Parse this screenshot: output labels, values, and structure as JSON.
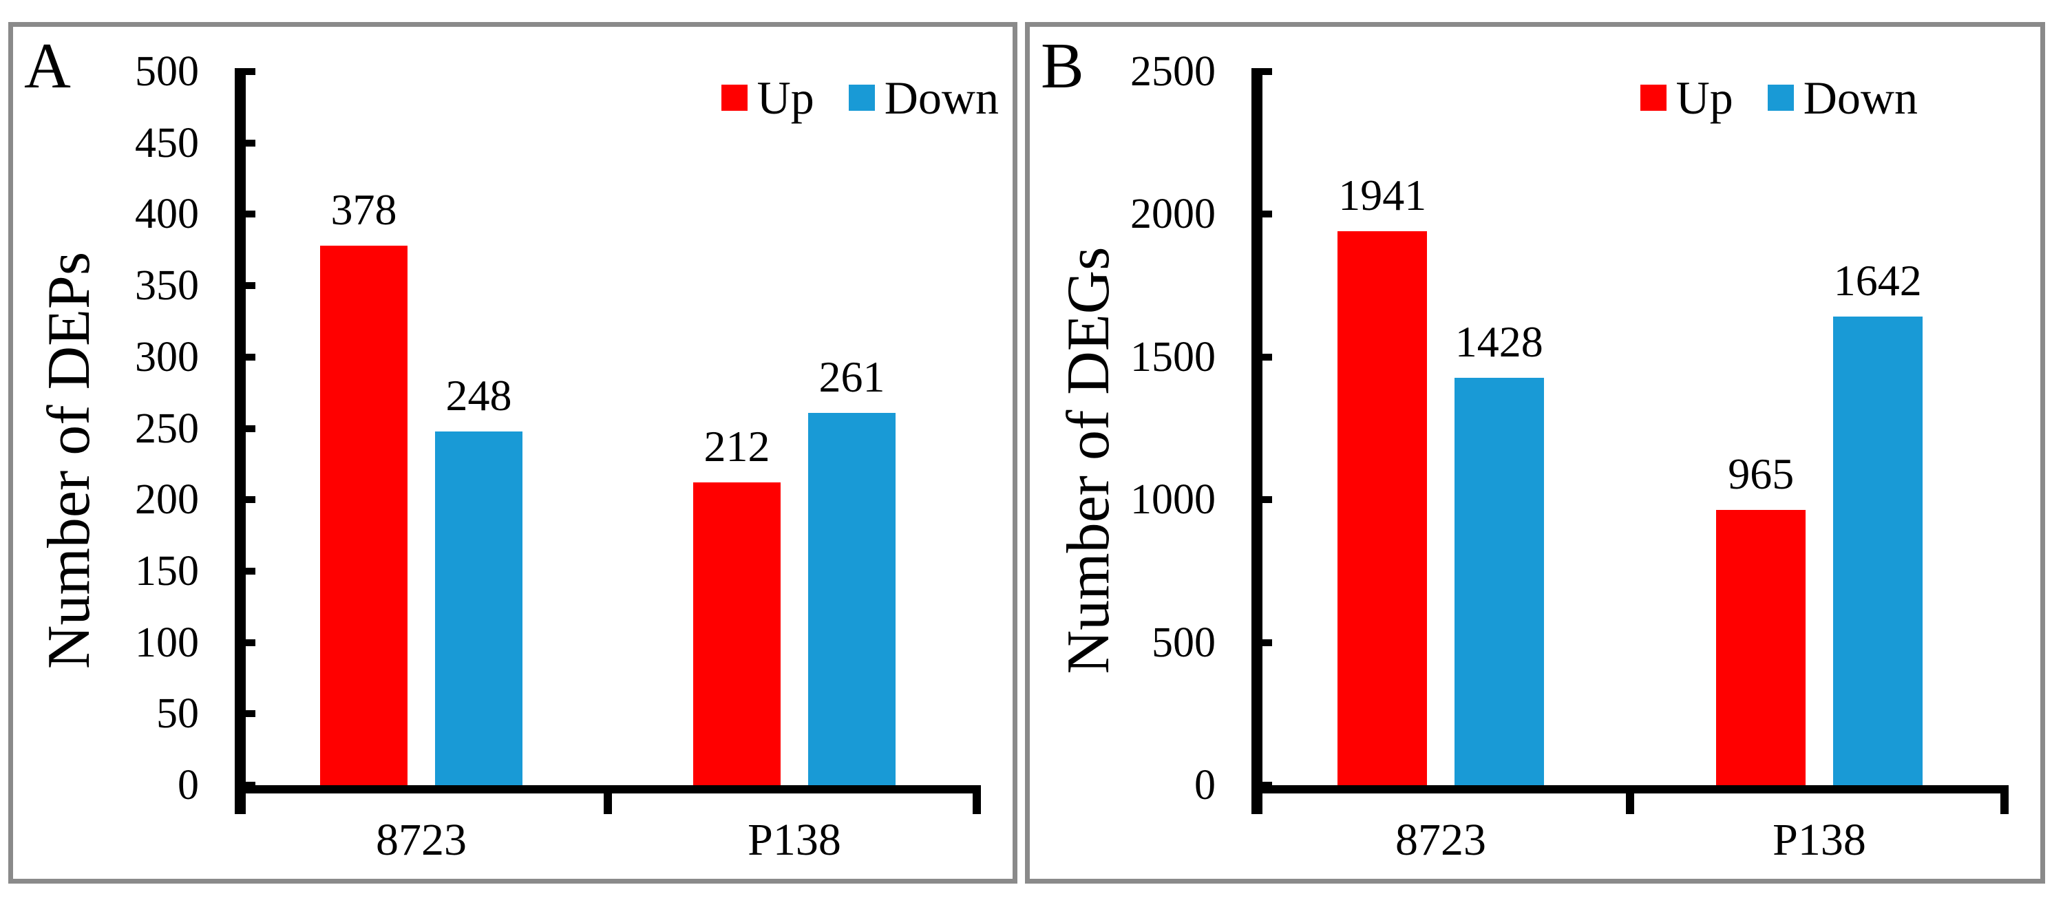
{
  "figure": {
    "panel_count": 2,
    "background": "#ffffff",
    "panel_border_color": "#8a8a8a",
    "axis_color": "#000000",
    "text_color": "#000000"
  },
  "colors": {
    "up": "#ff0000",
    "down": "#199ad6"
  },
  "chart_data": [
    {
      "type": "bar",
      "panel_label": "A",
      "title": "",
      "xlabel": "",
      "ylabel": "Number of DEPs",
      "categories": [
        "8723",
        "P138"
      ],
      "series": [
        {
          "name": "Up",
          "color": "#ff0000",
          "values": [
            378,
            212
          ]
        },
        {
          "name": "Down",
          "color": "#199ad6",
          "values": [
            248,
            261
          ]
        }
      ],
      "ylim": [
        0,
        500
      ],
      "yticks": [
        0,
        50,
        100,
        150,
        200,
        250,
        300,
        350,
        400,
        450,
        500
      ],
      "bar_value_labels": true,
      "grid": false,
      "legend_position": "top-right",
      "legend_entries": [
        "Up",
        "Down"
      ]
    },
    {
      "type": "bar",
      "panel_label": "B",
      "title": "",
      "xlabel": "",
      "ylabel": "Number of DEGs",
      "categories": [
        "8723",
        "P138"
      ],
      "series": [
        {
          "name": "Up",
          "color": "#ff0000",
          "values": [
            1941,
            965
          ]
        },
        {
          "name": "Down",
          "color": "#199ad6",
          "values": [
            1428,
            1642
          ]
        }
      ],
      "ylim": [
        0,
        2500
      ],
      "yticks": [
        0,
        500,
        1000,
        1500,
        2000,
        2500
      ],
      "bar_value_labels": true,
      "grid": false,
      "legend_position": "top-right",
      "legend_entries": [
        "Up",
        "Down"
      ]
    }
  ]
}
